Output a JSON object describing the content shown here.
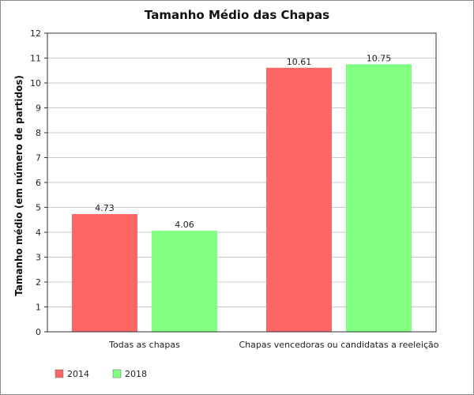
{
  "chart_data": {
    "type": "bar",
    "title": "Tamanho Médio das Chapas",
    "xlabel": "",
    "ylabel": "Tamanho médio (em número de partidos)",
    "categories": [
      "Todas as chapas",
      "Chapas vencedoras ou candidatas a reeleição"
    ],
    "series": [
      {
        "name": "2014",
        "color": "#ff6666",
        "values": [
          4.73,
          10.61
        ],
        "labels": [
          "4.73",
          "10.61"
        ]
      },
      {
        "name": "2018",
        "color": "#80ff80",
        "values": [
          4.06,
          10.75
        ],
        "labels": [
          "4.06",
          "10.75"
        ]
      }
    ],
    "ylim": [
      0,
      12
    ],
    "yticks": [
      "0",
      "1",
      "2",
      "3",
      "4",
      "5",
      "6",
      "7",
      "8",
      "9",
      "10",
      "11",
      "12"
    ],
    "grid": true,
    "legend": "bottom-left"
  }
}
